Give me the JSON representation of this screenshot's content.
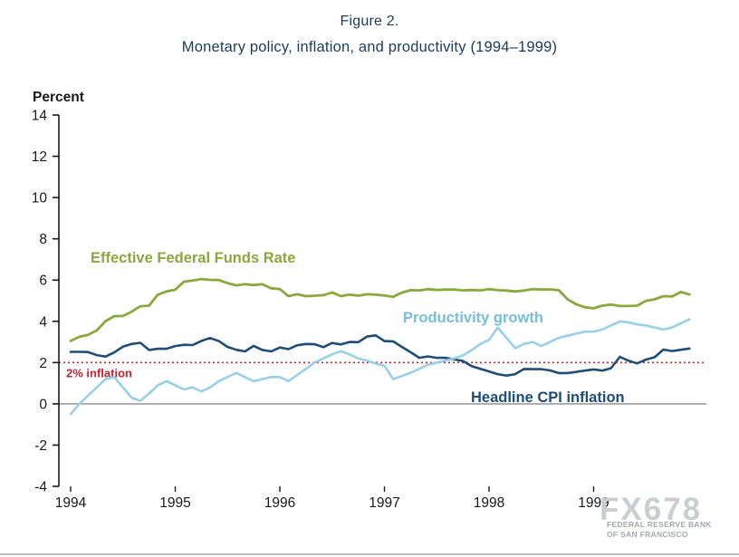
{
  "figure": {
    "title": "Figure 2.",
    "subtitle": "Monetary policy, inflation, and productivity (1994–1999)",
    "y_axis_label": "Percent"
  },
  "watermark": {
    "text": "FX678",
    "line1": "FEDERAL RESERVE BANK",
    "line2": "OF SAN FRANCISCO"
  },
  "colors": {
    "ffr": "#8aa93c",
    "productivity": "#97d0ea",
    "productivity_label": "#74bede",
    "cpi": "#1d4e79",
    "inflation_target": "#c32032",
    "axis": "#1a1a1a",
    "tick_text": "#1a1a1a",
    "zero_line": "#8c8c8c"
  },
  "chart_data": {
    "type": "line",
    "title": "Monetary policy, inflation, and productivity (1994–1999)",
    "xlabel": "",
    "ylabel": "Percent",
    "ylim": [
      -4,
      14
    ],
    "ytick_step": 2,
    "xlim": [
      1994,
      2000
    ],
    "x_years": [
      1994,
      1995,
      1996,
      1997,
      1998,
      1999
    ],
    "x_start": 1994.0,
    "x_step": 0.0833333,
    "grid": false,
    "legend": "inline-labels",
    "annotations": {
      "inflation_target": {
        "y": 2,
        "label": "2% inflation",
        "style": "dotted"
      }
    },
    "series": [
      {
        "name": "Effective Federal Funds Rate",
        "color_key": "ffr",
        "width": 2.8,
        "values": [
          3.05,
          3.25,
          3.34,
          3.56,
          4.01,
          4.25,
          4.26,
          4.47,
          4.73,
          4.76,
          5.29,
          5.45,
          5.53,
          5.92,
          5.98,
          6.05,
          6.01,
          6.0,
          5.85,
          5.74,
          5.8,
          5.76,
          5.8,
          5.6,
          5.56,
          5.22,
          5.31,
          5.22,
          5.24,
          5.27,
          5.4,
          5.22,
          5.3,
          5.24,
          5.31,
          5.29,
          5.25,
          5.19,
          5.39,
          5.51,
          5.5,
          5.56,
          5.52,
          5.54,
          5.54,
          5.5,
          5.52,
          5.5,
          5.56,
          5.51,
          5.49,
          5.45,
          5.49,
          5.56,
          5.54,
          5.55,
          5.51,
          5.07,
          4.83,
          4.68,
          4.63,
          4.76,
          4.81,
          4.74,
          4.74,
          4.76,
          4.99,
          5.07,
          5.22,
          5.2,
          5.42,
          5.3
        ]
      },
      {
        "name": "Headline CPI inflation",
        "color_key": "cpi",
        "width": 2.6,
        "values": [
          2.52,
          2.52,
          2.51,
          2.36,
          2.29,
          2.49,
          2.77,
          2.9,
          2.96,
          2.61,
          2.67,
          2.67,
          2.8,
          2.86,
          2.85,
          3.05,
          3.19,
          3.04,
          2.76,
          2.62,
          2.54,
          2.81,
          2.61,
          2.54,
          2.73,
          2.65,
          2.84,
          2.9,
          2.89,
          2.75,
          2.95,
          2.88,
          3.0,
          2.99,
          3.26,
          3.32,
          3.04,
          3.03,
          2.76,
          2.5,
          2.23,
          2.3,
          2.23,
          2.23,
          2.15,
          2.08,
          1.83,
          1.7,
          1.57,
          1.44,
          1.37,
          1.44,
          1.69,
          1.68,
          1.68,
          1.62,
          1.49,
          1.49,
          1.55,
          1.61,
          1.67,
          1.61,
          1.73,
          2.28,
          2.09,
          1.96,
          2.14,
          2.26,
          2.63,
          2.56,
          2.62,
          2.68
        ]
      },
      {
        "name": "Productivity growth",
        "color_key": "productivity",
        "width": 2.6,
        "values": [
          -0.5,
          0.0,
          0.4,
          0.8,
          1.2,
          1.3,
          0.8,
          0.3,
          0.15,
          0.5,
          0.9,
          1.1,
          0.9,
          0.7,
          0.8,
          0.6,
          0.8,
          1.1,
          1.3,
          1.5,
          1.3,
          1.1,
          1.2,
          1.3,
          1.3,
          1.1,
          1.4,
          1.7,
          2.0,
          2.2,
          2.4,
          2.55,
          2.4,
          2.2,
          2.1,
          1.95,
          1.85,
          1.2,
          1.35,
          1.5,
          1.7,
          1.9,
          2.0,
          2.1,
          2.2,
          2.35,
          2.6,
          2.9,
          3.1,
          3.7,
          3.2,
          2.7,
          2.9,
          3.0,
          2.8,
          3.0,
          3.2,
          3.3,
          3.4,
          3.5,
          3.5,
          3.6,
          3.8,
          4.0,
          3.95,
          3.85,
          3.8,
          3.7,
          3.6,
          3.7,
          3.9,
          4.1
        ]
      }
    ]
  }
}
